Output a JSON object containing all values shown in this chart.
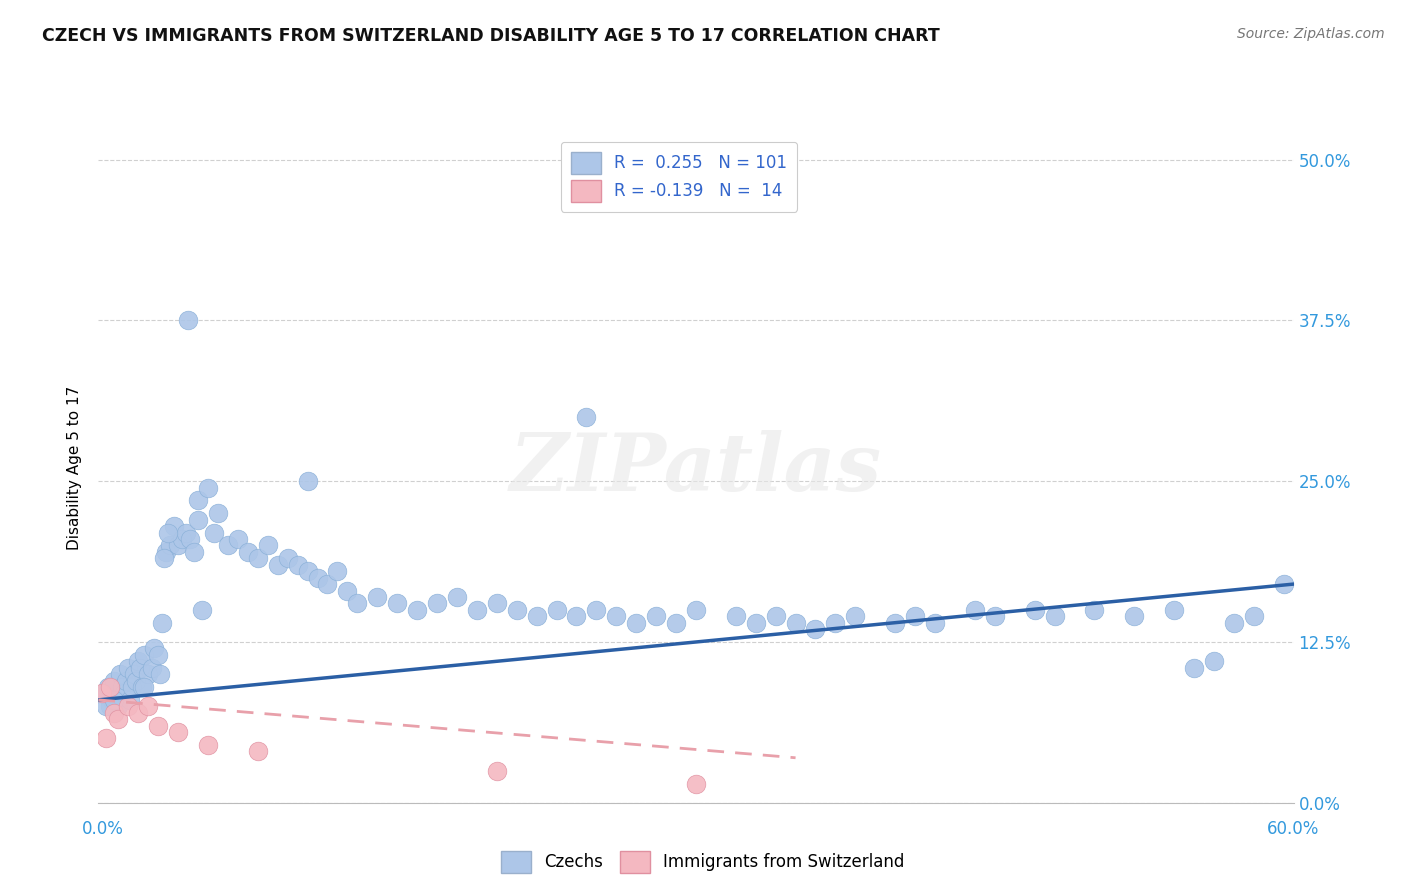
{
  "title": "CZECH VS IMMIGRANTS FROM SWITZERLAND DISABILITY AGE 5 TO 17 CORRELATION CHART",
  "source": "Source: ZipAtlas.com",
  "ylabel": "Disability Age 5 to 17",
  "ytick_values": [
    0.0,
    12.5,
    25.0,
    37.5,
    50.0
  ],
  "xlim": [
    0.0,
    60.0
  ],
  "ylim": [
    0.0,
    52.0
  ],
  "czech_color": "#adc6e8",
  "swiss_color": "#f4b8c1",
  "czech_line_color": "#2b5fa5",
  "swiss_line_color": "#e8a0aa",
  "background_color": "#ffffff",
  "watermark_text": "ZIPatlas",
  "czech_line_x": [
    0.0,
    60.0
  ],
  "czech_line_y": [
    8.0,
    17.0
  ],
  "swiss_line_x": [
    0.0,
    35.0
  ],
  "swiss_line_y": [
    8.0,
    3.5
  ],
  "czech_points_x": [
    0.3,
    0.5,
    0.6,
    0.7,
    0.8,
    0.9,
    1.0,
    1.1,
    1.2,
    1.3,
    1.4,
    1.5,
    1.6,
    1.7,
    1.8,
    1.9,
    2.0,
    2.1,
    2.2,
    2.3,
    2.5,
    2.7,
    2.8,
    3.0,
    3.2,
    3.4,
    3.6,
    3.8,
    4.0,
    4.2,
    4.4,
    4.6,
    4.8,
    5.0,
    5.0,
    5.5,
    5.8,
    6.0,
    6.5,
    7.0,
    7.5,
    8.0,
    8.5,
    9.0,
    9.5,
    10.0,
    10.5,
    11.0,
    11.5,
    12.0,
    12.5,
    13.0,
    14.0,
    15.0,
    16.0,
    17.0,
    18.0,
    19.0,
    20.0,
    21.0,
    22.0,
    23.0,
    24.0,
    25.0,
    26.0,
    27.0,
    28.0,
    29.0,
    30.0,
    32.0,
    33.0,
    34.0,
    35.0,
    36.0,
    37.0,
    38.0,
    40.0,
    41.0,
    42.0,
    44.0,
    45.0,
    47.0,
    48.0,
    50.0,
    52.0,
    54.0,
    55.0,
    56.0,
    57.0,
    58.0,
    59.5,
    4.5,
    10.5,
    24.5,
    0.4,
    0.8,
    2.3,
    3.1,
    3.3,
    3.5,
    5.2
  ],
  "czech_points_y": [
    8.5,
    9.0,
    7.5,
    8.0,
    9.5,
    8.0,
    7.5,
    10.0,
    9.0,
    8.5,
    9.5,
    10.5,
    8.0,
    9.0,
    10.0,
    9.5,
    11.0,
    10.5,
    9.0,
    11.5,
    10.0,
    10.5,
    12.0,
    11.5,
    14.0,
    19.5,
    20.0,
    21.5,
    20.0,
    20.5,
    21.0,
    20.5,
    19.5,
    22.0,
    23.5,
    24.5,
    21.0,
    22.5,
    20.0,
    20.5,
    19.5,
    19.0,
    20.0,
    18.5,
    19.0,
    18.5,
    18.0,
    17.5,
    17.0,
    18.0,
    16.5,
    15.5,
    16.0,
    15.5,
    15.0,
    15.5,
    16.0,
    15.0,
    15.5,
    15.0,
    14.5,
    15.0,
    14.5,
    15.0,
    14.5,
    14.0,
    14.5,
    14.0,
    15.0,
    14.5,
    14.0,
    14.5,
    14.0,
    13.5,
    14.0,
    14.5,
    14.0,
    14.5,
    14.0,
    15.0,
    14.5,
    15.0,
    14.5,
    15.0,
    14.5,
    15.0,
    10.5,
    11.0,
    14.0,
    14.5,
    17.0,
    37.5,
    25.0,
    30.0,
    7.5,
    8.0,
    9.0,
    10.0,
    19.0,
    21.0,
    15.0
  ],
  "swiss_points_x": [
    0.2,
    0.4,
    0.6,
    0.8,
    1.0,
    1.5,
    2.0,
    2.5,
    3.0,
    4.0,
    5.5,
    8.0,
    20.0,
    30.0
  ],
  "swiss_points_y": [
    8.5,
    5.0,
    9.0,
    7.0,
    6.5,
    7.5,
    7.0,
    7.5,
    6.0,
    5.5,
    4.5,
    4.0,
    2.5,
    1.5
  ]
}
